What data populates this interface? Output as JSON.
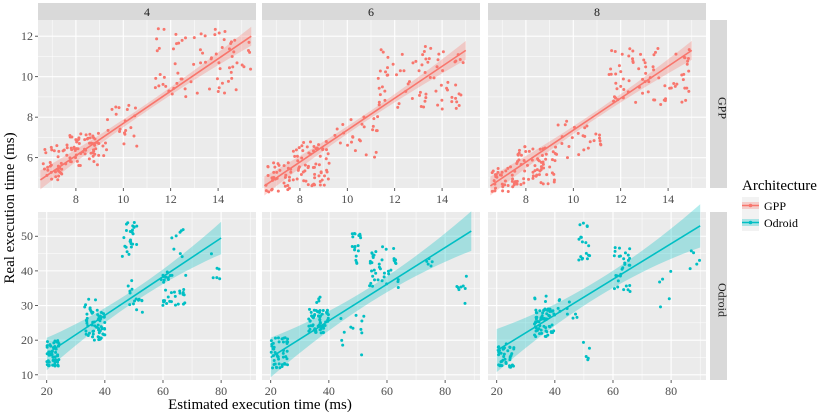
{
  "figure": {
    "xlabel": "Estimated execution time (ms)",
    "ylabel": "Real execution time (ms)",
    "legend_title": "Architecture",
    "legend_position": "right",
    "legend": [
      {
        "name": "GPP",
        "color": "#F8766D"
      },
      {
        "name": "Odroid",
        "color": "#00BFC4"
      }
    ],
    "columns": [
      "4",
      "6",
      "8"
    ],
    "rows": [
      "GPP",
      "Odroid"
    ]
  },
  "chart_data": [
    {
      "type": "scatter",
      "row": "GPP",
      "column": "4",
      "series": "GPP",
      "color": "#F8766D",
      "xlim": [
        6.4,
        15.6
      ],
      "ylim": [
        4.5,
        12.8
      ],
      "xticks": [
        8,
        10,
        12,
        14
      ],
      "yticks": [
        6,
        8,
        10,
        12
      ],
      "trend": {
        "x0": 6.5,
        "y0": 4.9,
        "x1": 15.4,
        "y1": 12.0,
        "se": 0.18
      },
      "clusters": [
        {
          "x": [
            6.5,
            7.6
          ],
          "y": [
            4.9,
            6.6
          ],
          "n": 35
        },
        {
          "x": [
            7.6,
            9.3
          ],
          "y": [
            5.6,
            7.2
          ],
          "n": 65
        },
        {
          "x": [
            9.3,
            10.6
          ],
          "y": [
            6.5,
            8.6
          ],
          "n": 20
        },
        {
          "x": [
            11.3,
            15.4
          ],
          "y": [
            9.0,
            12.4
          ],
          "n": 75
        }
      ]
    },
    {
      "type": "scatter",
      "row": "GPP",
      "column": "6",
      "series": "GPP",
      "color": "#F8766D",
      "xlim": [
        6.4,
        15.6
      ],
      "ylim": [
        4.5,
        12.8
      ],
      "xticks": [
        8,
        10,
        12,
        14
      ],
      "yticks": [
        6,
        8,
        10,
        12
      ],
      "trend": {
        "x0": 6.5,
        "y0": 4.6,
        "x1": 15.0,
        "y1": 11.3,
        "se": 0.18
      },
      "clusters": [
        {
          "x": [
            6.5,
            7.6
          ],
          "y": [
            4.3,
            5.8
          ],
          "n": 35
        },
        {
          "x": [
            7.6,
            9.3
          ],
          "y": [
            4.6,
            6.8
          ],
          "n": 65
        },
        {
          "x": [
            9.3,
            11.3
          ],
          "y": [
            6.0,
            8.1
          ],
          "n": 25
        },
        {
          "x": [
            11.3,
            15.0
          ],
          "y": [
            8.4,
            11.6
          ],
          "n": 75
        }
      ]
    },
    {
      "type": "scatter",
      "row": "GPP",
      "column": "8",
      "series": "GPP",
      "color": "#F8766D",
      "xlim": [
        6.4,
        15.6
      ],
      "ylim": [
        4.5,
        12.8
      ],
      "xticks": [
        8,
        10,
        12,
        14
      ],
      "yticks": [
        6,
        8,
        10,
        12
      ],
      "trend": {
        "x0": 6.5,
        "y0": 4.6,
        "x1": 15.0,
        "y1": 11.3,
        "se": 0.18
      },
      "clusters": [
        {
          "x": [
            6.5,
            7.6
          ],
          "y": [
            4.3,
            5.6
          ],
          "n": 35
        },
        {
          "x": [
            7.6,
            9.3
          ],
          "y": [
            4.6,
            6.6
          ],
          "n": 65
        },
        {
          "x": [
            9.3,
            11.3
          ],
          "y": [
            6.0,
            7.9
          ],
          "n": 25
        },
        {
          "x": [
            11.5,
            15.0
          ],
          "y": [
            8.6,
            11.5
          ],
          "n": 75
        }
      ]
    },
    {
      "type": "scatter",
      "row": "Odroid",
      "column": "4",
      "series": "Odroid",
      "color": "#00BFC4",
      "xlim": [
        17,
        92
      ],
      "ylim": [
        8.5,
        57
      ],
      "xticks": [
        20,
        40,
        60,
        80
      ],
      "yticks": [
        10,
        20,
        30,
        40,
        50
      ],
      "trend": {
        "x0": 20,
        "y0": 16.0,
        "x1": 80,
        "y1": 49.5,
        "se": 1.8
      },
      "clusters": [
        {
          "x": [
            20,
            24.5
          ],
          "y": [
            12.5,
            20
          ],
          "n": 55
        },
        {
          "x": [
            33,
            40
          ],
          "y": [
            20,
            29
          ],
          "n": 60
        },
        {
          "x": [
            33,
            37
          ],
          "y": [
            28,
            33
          ],
          "n": 5
        },
        {
          "x": [
            46,
            51
          ],
          "y": [
            44,
            55
          ],
          "n": 25
        },
        {
          "x": [
            47,
            53
          ],
          "y": [
            28,
            38
          ],
          "n": 15
        },
        {
          "x": [
            59,
            68
          ],
          "y": [
            30,
            40
          ],
          "n": 35
        },
        {
          "x": [
            62,
            68
          ],
          "y": [
            44,
            52
          ],
          "n": 8
        },
        {
          "x": [
            76,
            80
          ],
          "y": [
            32,
            45
          ],
          "n": 6
        }
      ]
    },
    {
      "type": "scatter",
      "row": "Odroid",
      "column": "6",
      "series": "Odroid",
      "color": "#00BFC4",
      "xlim": [
        17,
        92
      ],
      "ylim": [
        8.5,
        57
      ],
      "xticks": [
        20,
        40,
        60,
        80
      ],
      "yticks": [
        10,
        20,
        30,
        40,
        50
      ],
      "trend": {
        "x0": 20,
        "y0": 15.0,
        "x1": 89,
        "y1": 51.5,
        "se": 2.2
      },
      "clusters": [
        {
          "x": [
            20,
            26
          ],
          "y": [
            12,
            21
          ],
          "n": 45
        },
        {
          "x": [
            33,
            40
          ],
          "y": [
            22,
            29
          ],
          "n": 60
        },
        {
          "x": [
            35,
            38
          ],
          "y": [
            29,
            33
          ],
          "n": 4
        },
        {
          "x": [
            43,
            53
          ],
          "y": [
            15,
            30
          ],
          "n": 12
        },
        {
          "x": [
            48,
            51
          ],
          "y": [
            42,
            52
          ],
          "n": 18
        },
        {
          "x": [
            54,
            64
          ],
          "y": [
            34,
            47
          ],
          "n": 40
        },
        {
          "x": [
            72,
            76
          ],
          "y": [
            40,
            44
          ],
          "n": 5
        },
        {
          "x": [
            84,
            88
          ],
          "y": [
            28,
            40
          ],
          "n": 8
        }
      ]
    },
    {
      "type": "scatter",
      "row": "Odroid",
      "column": "8",
      "series": "Odroid",
      "color": "#00BFC4",
      "xlim": [
        17,
        92
      ],
      "ylim": [
        8.5,
        57
      ],
      "xticks": [
        20,
        40,
        60,
        80
      ],
      "yticks": [
        10,
        20,
        30,
        40,
        50
      ],
      "trend": {
        "x0": 20,
        "y0": 17.0,
        "x1": 90,
        "y1": 53.0,
        "se": 2.4
      },
      "clusters": [
        {
          "x": [
            20,
            26
          ],
          "y": [
            12,
            19
          ],
          "n": 40
        },
        {
          "x": [
            33,
            40
          ],
          "y": [
            21,
            29
          ],
          "n": 65
        },
        {
          "x": [
            33,
            38
          ],
          "y": [
            29,
            33
          ],
          "n": 4
        },
        {
          "x": [
            40,
            48
          ],
          "y": [
            24,
            32
          ],
          "n": 10
        },
        {
          "x": [
            48,
            52
          ],
          "y": [
            43,
            56
          ],
          "n": 18
        },
        {
          "x": [
            49,
            52
          ],
          "y": [
            14,
            22
          ],
          "n": 5
        },
        {
          "x": [
            60,
            66
          ],
          "y": [
            34,
            47
          ],
          "n": 30
        },
        {
          "x": [
            76,
            80
          ],
          "y": [
            28,
            40
          ],
          "n": 5
        },
        {
          "x": [
            86,
            90
          ],
          "y": [
            40,
            46
          ],
          "n": 5
        }
      ]
    }
  ]
}
